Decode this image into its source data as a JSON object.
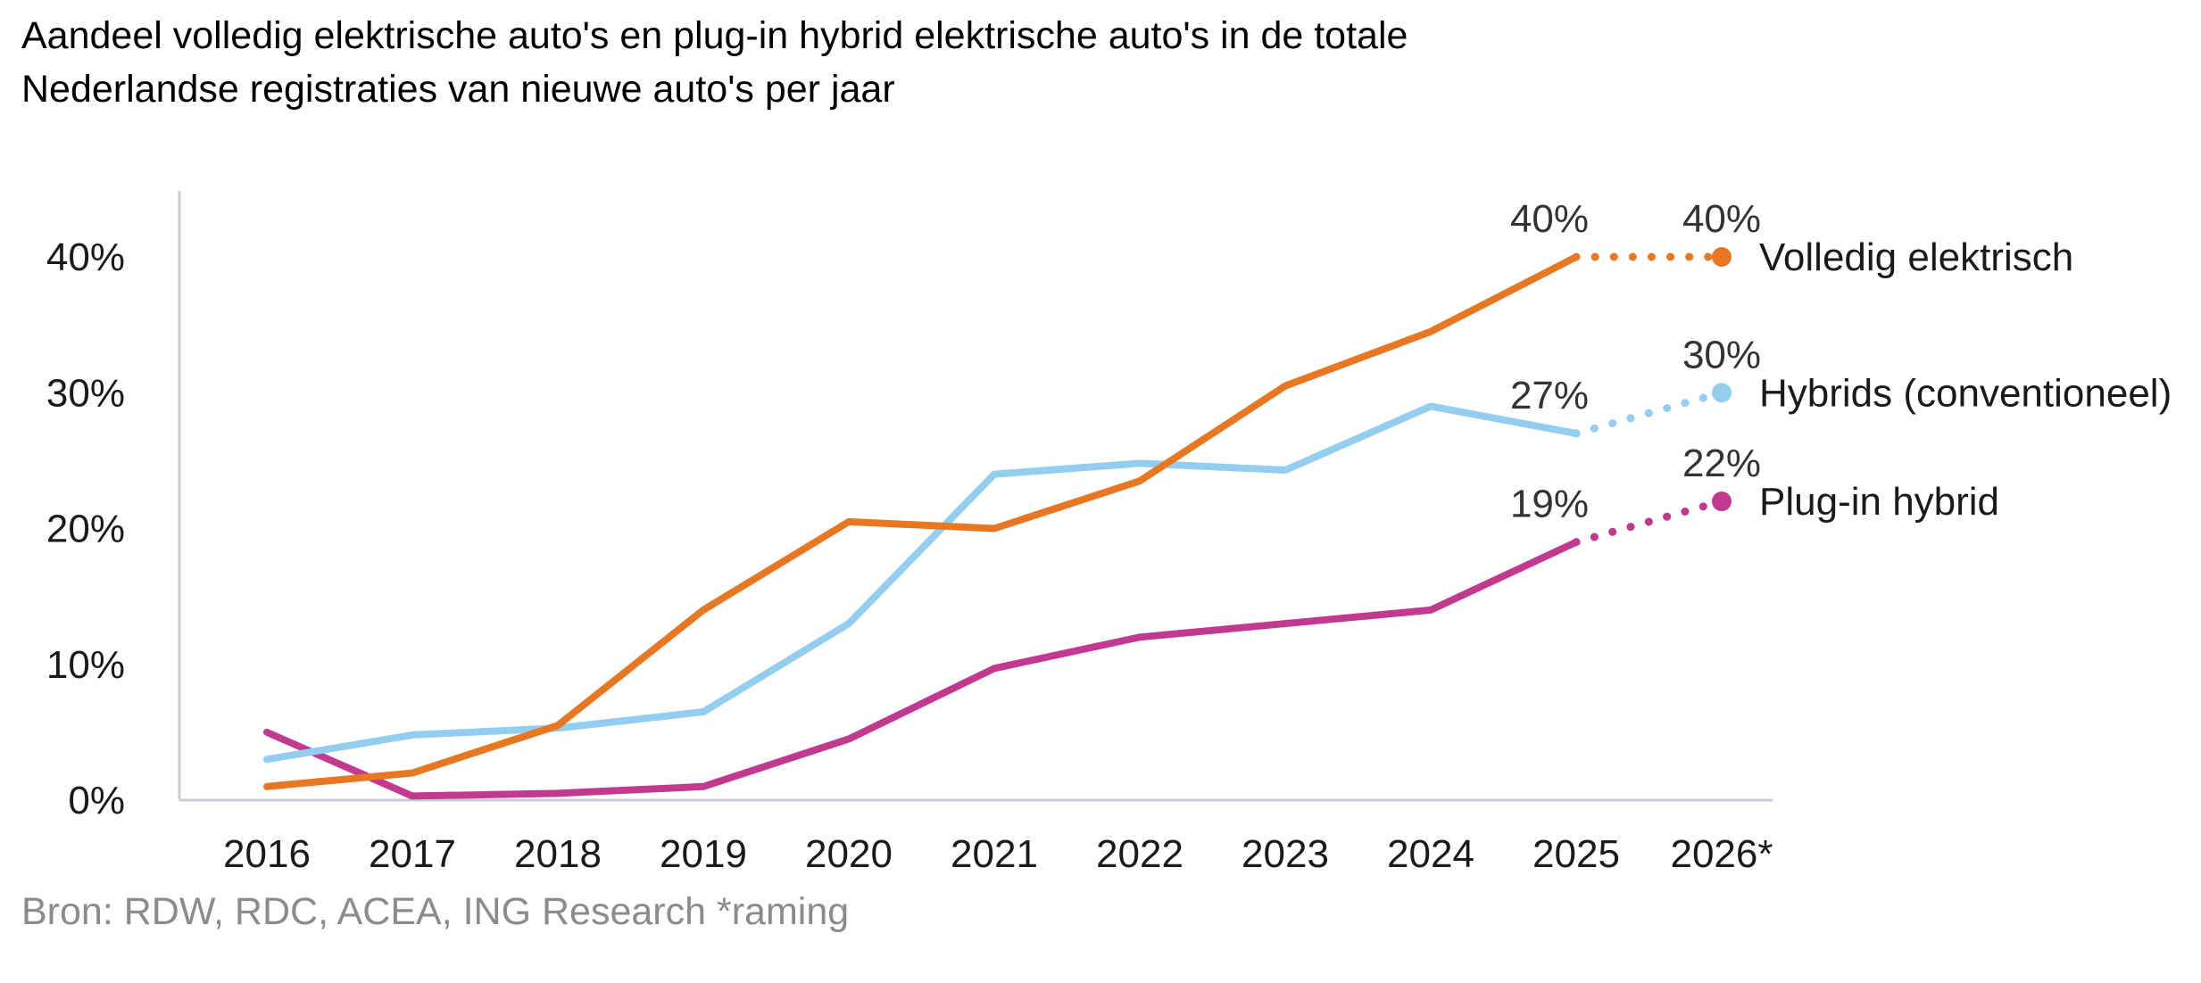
{
  "title": {
    "line1": "Aandeel volledig elektrische auto's en plug-in hybrid elektrische auto's in de totale",
    "line2": "Nederlandse registraties van nieuwe auto's per jaar"
  },
  "source": "Bron: RDW, RDC, ACEA, ING Research *raming",
  "colors": {
    "axis": "#C8CDD3",
    "tick_text": "#1A1A1A",
    "point_label_text": "#333333",
    "legend_text": "#1A1A1A",
    "source_text": "#898C8F",
    "background": "#FFFFFF"
  },
  "chart_data": {
    "type": "line",
    "title": "Aandeel volledig elektrische auto's en plug-in hybrid elektrische auto's in de totale Nederlandse registraties van nieuwe auto's per jaar",
    "xlabel": "",
    "ylabel": "",
    "categories": [
      "2016",
      "2017",
      "2018",
      "2019",
      "2020",
      "2021",
      "2022",
      "2023",
      "2024",
      "2025",
      "2026*"
    ],
    "ytick_values": [
      0,
      10,
      20,
      30,
      40
    ],
    "ytick_labels": [
      "0%",
      "10%",
      "20%",
      "30%",
      "40%"
    ],
    "ylim": [
      0,
      44
    ],
    "grid": false,
    "legend_position": "right-of-line-end",
    "forecast_from_index": 9,
    "forecast_style": "dotted",
    "forecast_note": "*raming",
    "series": [
      {
        "name": "Volledig elektrisch",
        "color": "#E87722",
        "values": [
          1,
          2,
          5.5,
          14,
          20.5,
          20,
          23.5,
          30.5,
          34.5,
          40,
          40
        ],
        "point_labels": [
          null,
          null,
          null,
          null,
          null,
          null,
          null,
          null,
          null,
          "40%",
          "40%"
        ]
      },
      {
        "name": "Hybrids (conventioneel)",
        "color": "#93CDEF",
        "values": [
          3,
          4.8,
          5.3,
          6.5,
          13,
          24,
          24.8,
          24.3,
          29,
          27,
          30
        ],
        "point_labels": [
          null,
          null,
          null,
          null,
          null,
          null,
          null,
          null,
          null,
          "27%",
          "30%"
        ]
      },
      {
        "name": "Plug-in hybrid",
        "color": "#C13A8F",
        "values": [
          5,
          0.3,
          0.5,
          1,
          4.5,
          9.7,
          12,
          13,
          14,
          19,
          22
        ],
        "point_labels": [
          null,
          null,
          null,
          null,
          null,
          null,
          null,
          null,
          null,
          "19%",
          "22%"
        ]
      }
    ]
  }
}
